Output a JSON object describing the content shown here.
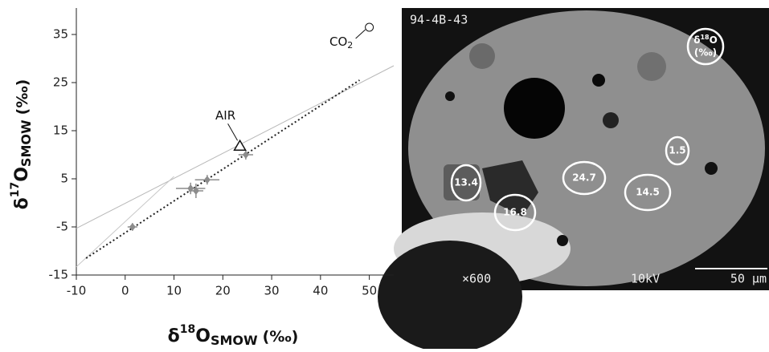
{
  "chart_data": {
    "type": "scatter",
    "xlabel": {
      "symbol": "δ",
      "sup": "18",
      "main": "O",
      "sub": "SMOW",
      "unit": "(‰)"
    },
    "ylabel": {
      "symbol": "δ",
      "sup": "17",
      "main": "O",
      "sub": "SMOW",
      "unit": "(‰)"
    },
    "x": [
      1.5,
      13.4,
      14.5,
      16.8,
      24.7
    ],
    "values": [
      -5,
      3,
      2.5,
      4.8,
      10
    ],
    "xerr": [
      1,
      3,
      1.5,
      2.5,
      1.5
    ],
    "yerr": [
      0.8,
      1.2,
      1.5,
      1,
      1
    ],
    "color": "#8c8c8c",
    "references": [
      {
        "label": "AIR",
        "x": 23.5,
        "y": 11.8,
        "marker": "triangle"
      },
      {
        "label": "CO",
        "label_sub": "2",
        "x": 50,
        "y": 36.5,
        "marker": "circle"
      }
    ],
    "lines": [
      {
        "x": [
          -10,
          55
        ],
        "values": [
          -5.3,
          28.5
        ],
        "style": "solid",
        "color": "#b8b8b8"
      },
      {
        "x": [
          -10,
          10
        ],
        "values": [
          -13.3,
          5.5
        ],
        "style": "solid",
        "color": "#c8c8c8"
      },
      {
        "x": [
          -8,
          48
        ],
        "values": [
          -11.5,
          25.5
        ],
        "style": "dotted",
        "color": "#222222"
      }
    ],
    "xlim": [
      -10,
      55
    ],
    "ylim": [
      -15,
      40.5
    ],
    "xticks": [
      -10,
      0,
      10,
      20,
      30,
      40,
      50
    ],
    "yticks": [
      -15,
      -5,
      5,
      15,
      25,
      35
    ]
  },
  "image": {
    "id_label": "94-4B-43",
    "magnification": "×600",
    "voltage": "10kV",
    "scale": "50 μm",
    "legend": {
      "symbol": "δ",
      "sup": "18",
      "main": "O",
      "unit": "(‰)"
    },
    "regions": [
      "13.4",
      "24.7",
      "16.8",
      "14.5",
      "1.5"
    ]
  }
}
